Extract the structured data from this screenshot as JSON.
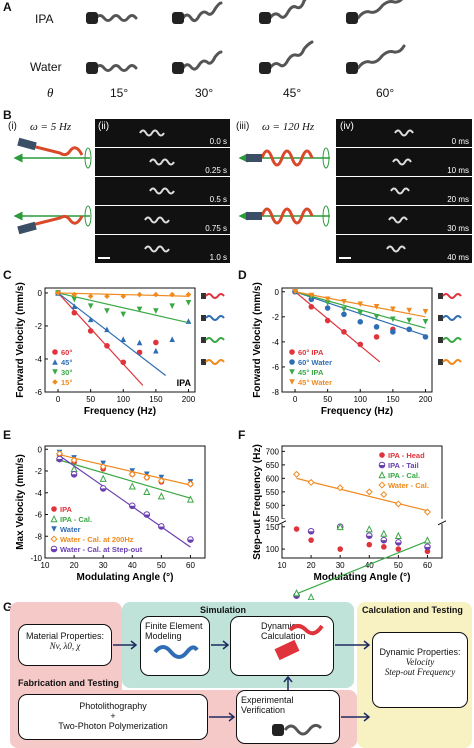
{
  "panels": {
    "a": "A",
    "b": "B",
    "c": "C",
    "d": "D",
    "e": "E",
    "f": "F",
    "g": "G"
  },
  "panel_a": {
    "rows": [
      "IPA",
      "Water"
    ],
    "theta_label": "θ",
    "angles": [
      "15°",
      "30°",
      "45°",
      "60°"
    ]
  },
  "panel_b": {
    "sub_i": "(i)",
    "sub_ii": "(ii)",
    "sub_iii": "(iii)",
    "sub_iv": "(iv)",
    "omega_5": "ω = 5 Hz",
    "omega_120": "ω = 120 Hz",
    "times_ii": [
      "0.0 s",
      "0.25 s",
      "0.5 s",
      "0.75 s",
      "1.0 s"
    ],
    "times_iv": [
      "0 ms",
      "10 ms",
      "20 ms",
      "30 ms",
      "40 ms"
    ]
  },
  "colors": {
    "red": "#e0343c",
    "blue": "#2f6db5",
    "green": "#3aa845",
    "orange": "#f08a1f",
    "purple": "#6a3fb0",
    "navy": "#1f2a60"
  },
  "chart_data": [
    {
      "id": "C",
      "type": "scatter",
      "xlabel": "Frequency (Hz)",
      "ylabel": "Forward Velocity (mm/s)",
      "xlim": [
        -20,
        210
      ],
      "ylim": [
        -6,
        0.3
      ],
      "xticks": [
        0,
        50,
        100,
        150,
        200
      ],
      "yticks": [
        0,
        -2,
        -4,
        -6
      ],
      "annotation": "IPA",
      "legend_position": "left",
      "series": [
        {
          "name": "60°",
          "color": "#e0343c",
          "marker": "circle",
          "x": [
            0,
            25,
            50,
            75,
            100,
            125,
            150
          ],
          "y": [
            0,
            -1.2,
            -2.3,
            -3.2,
            -4.2,
            -3.6,
            -3.0
          ],
          "fit": [
            [
              0,
              0
            ],
            [
              130,
              -5.6
            ]
          ]
        },
        {
          "name": "45°",
          "color": "#2f6db5",
          "marker": "triangle",
          "x": [
            0,
            25,
            50,
            75,
            100,
            125,
            150,
            175,
            200
          ],
          "y": [
            0,
            -0.8,
            -1.6,
            -2.2,
            -2.8,
            -3.0,
            -3.5,
            -2.8,
            -1.7
          ],
          "fit": [
            [
              0,
              0
            ],
            [
              165,
              -5.0
            ]
          ]
        },
        {
          "name": "30°",
          "color": "#3aa845",
          "marker": "tri-down",
          "x": [
            0,
            25,
            50,
            75,
            100,
            125,
            150,
            175,
            200
          ],
          "y": [
            0,
            -0.4,
            -0.8,
            -1.1,
            -1.3,
            -1.0,
            -1.1,
            -0.8,
            -0.6
          ],
          "fit": [
            [
              0,
              0
            ],
            [
              200,
              -1.8
            ]
          ]
        },
        {
          "name": "15°",
          "color": "#f08a1f",
          "marker": "diamond",
          "x": [
            0,
            25,
            50,
            75,
            100,
            125,
            150,
            175,
            200
          ],
          "y": [
            0,
            -0.1,
            -0.2,
            -0.2,
            -0.2,
            -0.1,
            -0.1,
            -0.1,
            -0.1
          ],
          "fit": [
            [
              0,
              0
            ],
            [
              200,
              -0.2
            ]
          ]
        }
      ]
    },
    {
      "id": "D",
      "type": "scatter",
      "xlabel": "Frequency (Hz)",
      "ylabel": "Forward Velocity (mm/s)",
      "xlim": [
        -20,
        210
      ],
      "ylim": [
        -8,
        0.3
      ],
      "xticks": [
        0,
        50,
        100,
        150,
        200
      ],
      "yticks": [
        0,
        -2,
        -4,
        -6,
        -8
      ],
      "legend_position": "left",
      "series": [
        {
          "name": "60° IPA",
          "color": "#e0343c",
          "marker": "circle",
          "x": [
            0,
            25,
            50,
            75,
            100,
            125,
            150
          ],
          "y": [
            0,
            -1.2,
            -2.3,
            -3.2,
            -4.2,
            -3.6,
            -3.0
          ],
          "fit": [
            [
              0,
              0
            ],
            [
              130,
              -5.6
            ]
          ]
        },
        {
          "name": "60° Water",
          "color": "#2f6db5",
          "marker": "circle",
          "x": [
            0,
            25,
            50,
            75,
            100,
            125,
            150,
            175,
            200
          ],
          "y": [
            0,
            -0.6,
            -1.3,
            -1.8,
            -2.4,
            -2.8,
            -3.2,
            -3.0,
            -3.6
          ],
          "fit": [
            [
              0,
              0
            ],
            [
              200,
              -3.5
            ]
          ]
        },
        {
          "name": "45° IPA",
          "color": "#3aa845",
          "marker": "tri-down",
          "x": [
            0,
            25,
            50,
            75,
            100,
            125,
            150,
            175,
            200
          ],
          "y": [
            0,
            -0.4,
            -0.9,
            -1.4,
            -1.7,
            -2.0,
            -2.2,
            -2.3,
            -2.4
          ],
          "fit": [
            [
              0,
              0
            ],
            [
              200,
              -2.9
            ]
          ]
        },
        {
          "name": "45° Water",
          "color": "#f08a1f",
          "marker": "tri-down",
          "x": [
            0,
            25,
            50,
            75,
            100,
            125,
            150,
            175,
            200
          ],
          "y": [
            0,
            -0.3,
            -0.6,
            -0.8,
            -1.0,
            -1.2,
            -1.4,
            -1.5,
            -1.6
          ],
          "fit": [
            [
              0,
              0
            ],
            [
              200,
              -2.0
            ]
          ]
        }
      ]
    },
    {
      "id": "E",
      "type": "scatter",
      "xlabel": "Modulating Angle (°)",
      "ylabel": "Max Velocity (mm/s)",
      "xlim": [
        10,
        65
      ],
      "ylim": [
        -10,
        0.3
      ],
      "xticks": [
        10,
        20,
        30,
        40,
        50,
        60
      ],
      "yticks": [
        0,
        -2,
        -4,
        -6,
        -8,
        -10
      ],
      "legend_position": "bottom-left",
      "series": [
        {
          "name": "IPA",
          "color": "#e0343c",
          "marker": "circle",
          "x": [
            15,
            20,
            30,
            40,
            45,
            50,
            60
          ],
          "y": [
            -0.5,
            -1.2,
            -1.8,
            -2.3,
            -2.6,
            -3.0,
            -3.2
          ]
        },
        {
          "name": "IPA - Cal.",
          "color": "#3aa845",
          "marker": "tri-open",
          "x": [
            15,
            20,
            30,
            40,
            45,
            50,
            60
          ],
          "y": [
            -0.8,
            -1.8,
            -2.7,
            -3.4,
            -3.9,
            -4.3,
            -4.6
          ],
          "fit": [
            [
              15,
              -1.0
            ],
            [
              60,
              -4.5
            ]
          ]
        },
        {
          "name": "Water",
          "color": "#2f6db5",
          "marker": "tri-down",
          "x": [
            15,
            20,
            30,
            40,
            45,
            50,
            60
          ],
          "y": [
            -0.3,
            -0.8,
            -1.3,
            -2.0,
            -2.3,
            -2.6,
            -3.0
          ]
        },
        {
          "name": "Water - Cal. at 200Hz",
          "color": "#f08a1f",
          "marker": "diamond-open",
          "x": [
            15,
            20,
            30,
            40,
            45,
            50,
            60
          ],
          "y": [
            -0.4,
            -1.0,
            -1.6,
            -2.3,
            -2.6,
            -2.9,
            -3.2
          ],
          "fit": [
            [
              15,
              -0.5
            ],
            [
              60,
              -3.3
            ]
          ]
        },
        {
          "name": "Water - Cal. at Step-out",
          "color": "#6a3fb0",
          "marker": "half-circle",
          "x": [
            15,
            20,
            30,
            40,
            45,
            50,
            60
          ],
          "y": [
            -0.9,
            -2.3,
            -3.6,
            -5.2,
            -6.0,
            -7.1,
            -8.3
          ],
          "fit": [
            [
              15,
              -0.6
            ],
            [
              60,
              -9.0
            ]
          ]
        }
      ]
    },
    {
      "id": "F",
      "type": "scatter",
      "xlabel": "Modulating Angle (°)",
      "ylabel": "Step-out Frequency (Hz)",
      "xlim": [
        10,
        65
      ],
      "ylim": [
        80,
        720
      ],
      "xticks": [
        10,
        20,
        30,
        40,
        50,
        60
      ],
      "yticks": [
        100,
        150,
        450,
        500,
        550,
        600,
        650,
        700
      ],
      "axis_break": [
        150,
        450
      ],
      "legend_position": "top-right",
      "series": [
        {
          "name": "IPA - Head",
          "color": "#e0343c",
          "marker": "circle",
          "x": [
            15,
            20,
            30,
            40,
            45,
            50,
            60
          ],
          "y": [
            145,
            120,
            100,
            110,
            105,
            100,
            95
          ]
        },
        {
          "name": "IPA - Tail",
          "color": "#6a3fb0",
          "marker": "half-circle",
          "x": [
            15,
            20,
            30,
            40,
            45,
            50,
            60
          ],
          "y": [
            165,
            140,
            150,
            130,
            120,
            115,
            105
          ]
        },
        {
          "name": "IPA - Cal.",
          "color": "#3aa845",
          "marker": "tri-open",
          "x": [
            15,
            20,
            30,
            40,
            45,
            50,
            60
          ],
          "y": [
            175,
            160,
            150,
            145,
            135,
            130,
            120
          ],
          "fit": [
            [
              15,
              172
            ],
            [
              60,
              118
            ]
          ]
        },
        {
          "name": "Water - Cal.",
          "color": "#f08a1f",
          "marker": "diamond-open",
          "x": [
            15,
            20,
            30,
            40,
            45,
            50,
            60
          ],
          "y": [
            615,
            585,
            565,
            550,
            540,
            505,
            475
          ],
          "fit": [
            [
              15,
              600
            ],
            [
              60,
              480
            ]
          ]
        }
      ]
    }
  ],
  "panel_g": {
    "simulation": "Simulation",
    "calculation_testing": "Calculation and Testing",
    "fabrication_testing": "Fabrication and Testing",
    "material_title": "Material Properties:",
    "material_params": "Nv, λ0, χ",
    "fem": "Finite Element Modeling",
    "dynamic_calc": "Dynamic Calculation",
    "photolith": "Photolithography",
    "plus": "+",
    "tpp": "Two-Photon Polymerization",
    "exp_verification": "Experimental Verification",
    "dyn_props": "Dynamic Properties:",
    "velocity": "Velocity",
    "stepout": "Step-out Frequency"
  }
}
